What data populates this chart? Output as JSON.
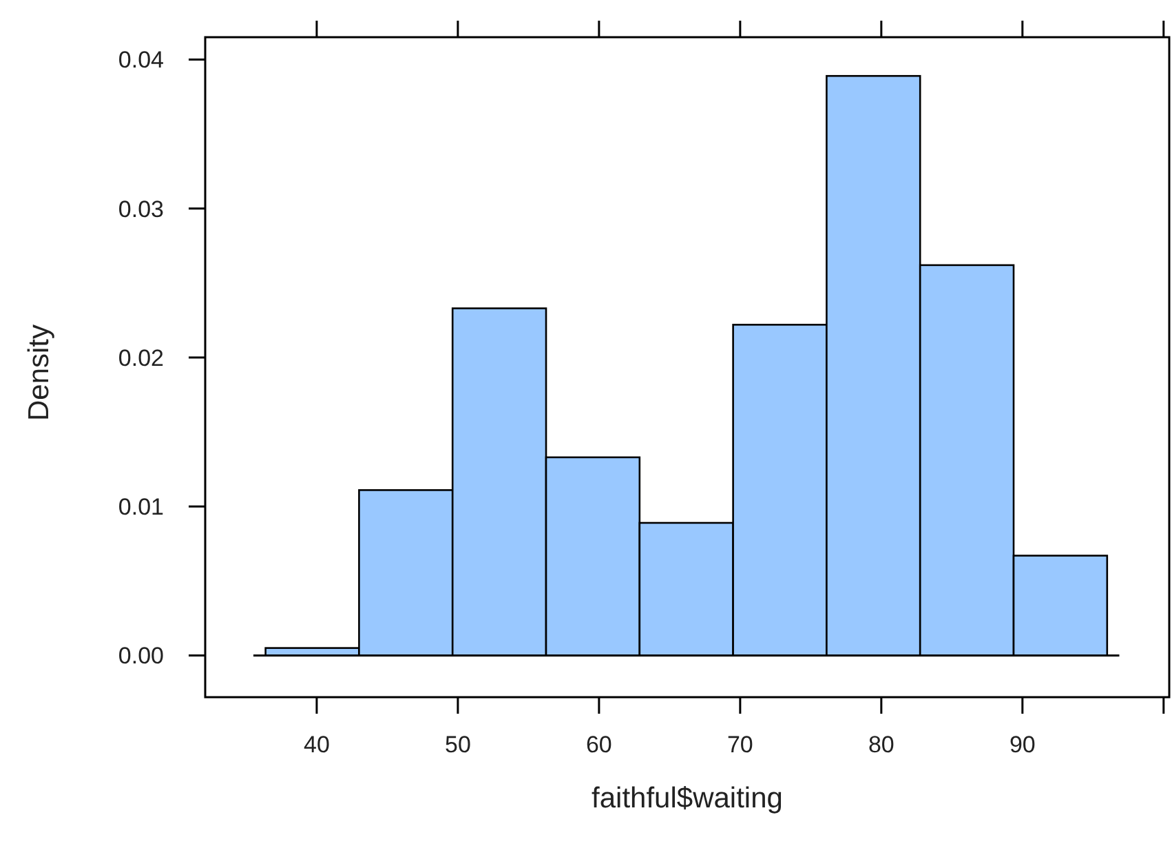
{
  "chart_data": {
    "type": "histogram",
    "xlabel": "faithful$waiting",
    "ylabel": "Density",
    "bins": [
      36.375,
      43,
      49.625,
      56.25,
      62.875,
      69.5,
      76.125,
      82.75,
      89.375,
      96
    ],
    "values": [
      0.0005,
      0.0111,
      0.0233,
      0.0133,
      0.0089,
      0.0222,
      0.0389,
      0.0262,
      0.0067
    ],
    "color": "#99c8ff",
    "xlim": [
      32.1,
      100.4
    ],
    "xticks": [
      40,
      50,
      60,
      70,
      80,
      90,
      {
        "value": 100,
        "label": null
      }
    ],
    "ylim": [
      -0.0028,
      0.0415
    ],
    "yticks": [
      {
        "value": 0,
        "label": "0.00"
      },
      {
        "value": 0.01,
        "label": "0.01"
      },
      {
        "value": 0.02,
        "label": "0.02"
      },
      {
        "value": 0.03,
        "label": "0.03"
      },
      {
        "value": 0.04,
        "label": "0.04"
      }
    ],
    "ref_lines": [
      {
        "axis": "y",
        "value": 0
      }
    ],
    "grid": false
  }
}
